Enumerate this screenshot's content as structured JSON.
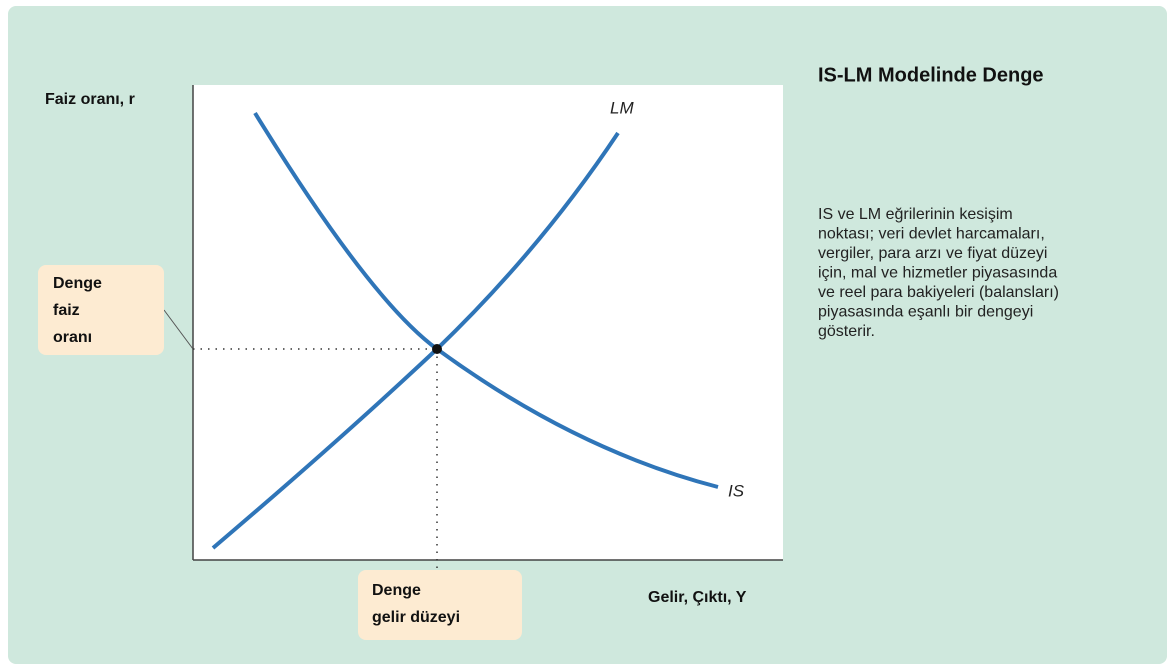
{
  "diagram": {
    "y_axis_label": "Faiz oranı, r",
    "x_axis_label": "Gelir, Çıktı, Y",
    "curves": [
      {
        "label": "LM"
      },
      {
        "label": "IS"
      }
    ],
    "callouts": [
      {
        "lines": [
          "Denge",
          "faiz",
          "oranı"
        ]
      },
      {
        "lines": [
          "Denge",
          "gelir düzeyi"
        ]
      }
    ],
    "title": "IS-LM Modelinde Denge",
    "description_lines": [
      "IS ve LM eğrilerinin kesişim",
      "noktası; veri devlet harcamaları,",
      "vergiler, para arzı ve fiyat düzeyi",
      "için,  mal ve hizmetler piyasasında",
      "ve reel para bakiyeleri (balansları)",
      "piyasasında eşanlı bir dengeyi",
      "gösterir."
    ]
  }
}
